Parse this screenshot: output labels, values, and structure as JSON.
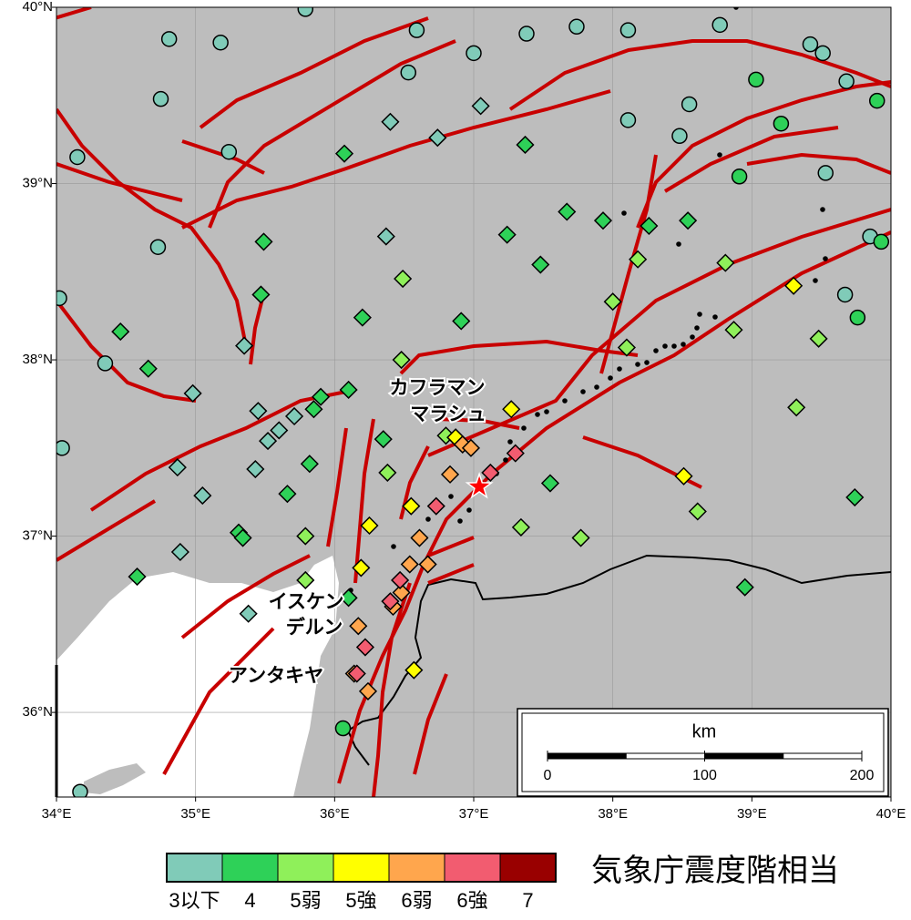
{
  "map": {
    "xlim": [
      34,
      40
    ],
    "ylim": [
      35.52,
      40
    ],
    "xticks": [
      {
        "value": 34,
        "label": "34°E"
      },
      {
        "value": 35,
        "label": "35°E"
      },
      {
        "value": 36,
        "label": "36°E"
      },
      {
        "value": 37,
        "label": "37°E"
      },
      {
        "value": 38,
        "label": "38°E"
      },
      {
        "value": 39,
        "label": "39°E"
      },
      {
        "value": 40,
        "label": "40°E"
      }
    ],
    "yticks": [
      {
        "value": 36,
        "label": "36°N"
      },
      {
        "value": 37,
        "label": "37°N"
      },
      {
        "value": 38,
        "label": "38°N"
      },
      {
        "value": 39,
        "label": "39°N"
      },
      {
        "value": 40,
        "label": "40°N"
      }
    ],
    "places": [
      [
        "カフラマン",
        "マラシュ"
      ],
      [
        "イスケン",
        "デルン"
      ],
      [
        "アンタキヤ"
      ]
    ],
    "epicenter": {
      "lon": 37.04,
      "lat": 37.28
    },
    "scalebar": {
      "unit": "km",
      "ticks": [
        0,
        100,
        200
      ]
    },
    "legend": {
      "title": "気象庁震度階相当",
      "classes": [
        {
          "label": "3以下",
          "color": "#80cbb8"
        },
        {
          "label": "4",
          "color": "#2ed158"
        },
        {
          "label": "5弱",
          "color": "#8ff05a"
        },
        {
          "label": "5強",
          "color": "#ffff00"
        },
        {
          "label": "6弱",
          "color": "#ffa64d"
        },
        {
          "label": "6強",
          "color": "#f25c70"
        },
        {
          "label": "7",
          "color": "#990000"
        }
      ]
    },
    "stations": [
      {
        "lon": 34.81,
        "lat": 39.82,
        "intensity": "3以下",
        "shape": "circle"
      },
      {
        "lon": 35.18,
        "lat": 39.8,
        "intensity": "3以下",
        "shape": "circle"
      },
      {
        "lon": 35.79,
        "lat": 39.99,
        "intensity": "3以下",
        "shape": "circle"
      },
      {
        "lon": 36.59,
        "lat": 39.87,
        "intensity": "3以下",
        "shape": "circle"
      },
      {
        "lon": 37.0,
        "lat": 39.74,
        "intensity": "3以下",
        "shape": "circle"
      },
      {
        "lon": 37.38,
        "lat": 39.85,
        "intensity": "3以下",
        "shape": "circle"
      },
      {
        "lon": 37.74,
        "lat": 39.89,
        "intensity": "3以下",
        "shape": "circle"
      },
      {
        "lon": 38.11,
        "lat": 39.87,
        "intensity": "3以下",
        "shape": "circle"
      },
      {
        "lon": 38.77,
        "lat": 39.9,
        "intensity": "3以下",
        "shape": "circle"
      },
      {
        "lon": 39.42,
        "lat": 39.79,
        "intensity": "3以下",
        "shape": "circle"
      },
      {
        "lon": 39.51,
        "lat": 39.74,
        "intensity": "3以下",
        "shape": "circle"
      },
      {
        "lon": 39.68,
        "lat": 39.58,
        "intensity": "3以下",
        "shape": "circle"
      },
      {
        "lon": 36.53,
        "lat": 39.63,
        "intensity": "3以下",
        "shape": "circle"
      },
      {
        "lon": 34.75,
        "lat": 39.48,
        "intensity": "3以下",
        "shape": "circle"
      },
      {
        "lon": 38.55,
        "lat": 39.45,
        "intensity": "3以下",
        "shape": "circle"
      },
      {
        "lon": 38.11,
        "lat": 39.36,
        "intensity": "3以下",
        "shape": "circle"
      },
      {
        "lon": 38.48,
        "lat": 39.27,
        "intensity": "3以下",
        "shape": "circle"
      },
      {
        "lon": 35.24,
        "lat": 39.18,
        "intensity": "3以下",
        "shape": "circle"
      },
      {
        "lon": 34.15,
        "lat": 39.15,
        "intensity": "3以下",
        "shape": "circle"
      },
      {
        "lon": 39.53,
        "lat": 39.06,
        "intensity": "3以下",
        "shape": "circle"
      },
      {
        "lon": 34.73,
        "lat": 38.64,
        "intensity": "3以下",
        "shape": "circle"
      },
      {
        "lon": 39.85,
        "lat": 38.7,
        "intensity": "3以下",
        "shape": "circle"
      },
      {
        "lon": 34.02,
        "lat": 38.35,
        "intensity": "3以下",
        "shape": "circle"
      },
      {
        "lon": 39.67,
        "lat": 38.37,
        "intensity": "3以下",
        "shape": "circle"
      },
      {
        "lon": 34.35,
        "lat": 37.98,
        "intensity": "3以下",
        "shape": "circle"
      },
      {
        "lon": 34.04,
        "lat": 37.5,
        "intensity": "3以下",
        "shape": "circle"
      },
      {
        "lon": 34.17,
        "lat": 35.55,
        "intensity": "3以下",
        "shape": "circle"
      },
      {
        "lon": 36.06,
        "lat": 35.91,
        "intensity": "4",
        "shape": "circle"
      },
      {
        "lon": 39.03,
        "lat": 39.59,
        "intensity": "4",
        "shape": "circle"
      },
      {
        "lon": 39.21,
        "lat": 39.34,
        "intensity": "4",
        "shape": "circle"
      },
      {
        "lon": 38.91,
        "lat": 39.04,
        "intensity": "4",
        "shape": "circle"
      },
      {
        "lon": 39.9,
        "lat": 39.47,
        "intensity": "4",
        "shape": "circle"
      },
      {
        "lon": 39.93,
        "lat": 38.67,
        "intensity": "4",
        "shape": "circle"
      },
      {
        "lon": 39.76,
        "lat": 38.24,
        "intensity": "4",
        "shape": "circle"
      },
      {
        "lon": 36.4,
        "lat": 39.35,
        "intensity": "3以下",
        "shape": "diamond"
      },
      {
        "lon": 36.74,
        "lat": 39.26,
        "intensity": "3以下",
        "shape": "diamond"
      },
      {
        "lon": 37.05,
        "lat": 39.44,
        "intensity": "3以下",
        "shape": "diamond"
      },
      {
        "lon": 36.37,
        "lat": 38.7,
        "intensity": "3以下",
        "shape": "diamond"
      },
      {
        "lon": 35.35,
        "lat": 38.08,
        "intensity": "3以下",
        "shape": "diamond"
      },
      {
        "lon": 34.98,
        "lat": 37.81,
        "intensity": "3以下",
        "shape": "diamond"
      },
      {
        "lon": 35.45,
        "lat": 37.71,
        "intensity": "3以下",
        "shape": "diamond"
      },
      {
        "lon": 35.6,
        "lat": 37.6,
        "intensity": "3以下",
        "shape": "diamond"
      },
      {
        "lon": 35.52,
        "lat": 37.54,
        "intensity": "3以下",
        "shape": "diamond"
      },
      {
        "lon": 35.71,
        "lat": 37.68,
        "intensity": "3以下",
        "shape": "diamond"
      },
      {
        "lon": 34.87,
        "lat": 37.39,
        "intensity": "3以下",
        "shape": "diamond"
      },
      {
        "lon": 35.05,
        "lat": 37.23,
        "intensity": "3以下",
        "shape": "diamond"
      },
      {
        "lon": 35.43,
        "lat": 37.38,
        "intensity": "3以下",
        "shape": "diamond"
      },
      {
        "lon": 34.89,
        "lat": 36.91,
        "intensity": "3以下",
        "shape": "diamond"
      },
      {
        "lon": 35.38,
        "lat": 36.56,
        "intensity": "3以下",
        "shape": "diamond"
      },
      {
        "lon": 36.07,
        "lat": 39.17,
        "intensity": "4",
        "shape": "diamond"
      },
      {
        "lon": 37.37,
        "lat": 39.22,
        "intensity": "4",
        "shape": "diamond"
      },
      {
        "lon": 35.49,
        "lat": 38.67,
        "intensity": "4",
        "shape": "diamond"
      },
      {
        "lon": 34.46,
        "lat": 38.16,
        "intensity": "4",
        "shape": "diamond"
      },
      {
        "lon": 34.66,
        "lat": 37.95,
        "intensity": "4",
        "shape": "diamond"
      },
      {
        "lon": 35.47,
        "lat": 38.37,
        "intensity": "4",
        "shape": "diamond"
      },
      {
        "lon": 36.2,
        "lat": 38.24,
        "intensity": "4",
        "shape": "diamond"
      },
      {
        "lon": 36.91,
        "lat": 38.22,
        "intensity": "4",
        "shape": "diamond"
      },
      {
        "lon": 35.85,
        "lat": 37.72,
        "intensity": "4",
        "shape": "diamond"
      },
      {
        "lon": 35.9,
        "lat": 37.79,
        "intensity": "4",
        "shape": "diamond"
      },
      {
        "lon": 36.1,
        "lat": 37.83,
        "intensity": "4",
        "shape": "diamond"
      },
      {
        "lon": 36.35,
        "lat": 37.55,
        "intensity": "4",
        "shape": "diamond"
      },
      {
        "lon": 35.82,
        "lat": 37.41,
        "intensity": "4",
        "shape": "diamond"
      },
      {
        "lon": 35.66,
        "lat": 37.24,
        "intensity": "4",
        "shape": "diamond"
      },
      {
        "lon": 35.31,
        "lat": 37.02,
        "intensity": "4",
        "shape": "diamond"
      },
      {
        "lon": 35.34,
        "lat": 36.99,
        "intensity": "4",
        "shape": "diamond"
      },
      {
        "lon": 34.58,
        "lat": 36.77,
        "intensity": "4",
        "shape": "diamond"
      },
      {
        "lon": 37.24,
        "lat": 38.71,
        "intensity": "4",
        "shape": "diamond"
      },
      {
        "lon": 37.48,
        "lat": 38.54,
        "intensity": "4",
        "shape": "diamond"
      },
      {
        "lon": 37.67,
        "lat": 38.84,
        "intensity": "4",
        "shape": "diamond"
      },
      {
        "lon": 37.93,
        "lat": 38.79,
        "intensity": "4",
        "shape": "diamond"
      },
      {
        "lon": 38.26,
        "lat": 38.76,
        "intensity": "4",
        "shape": "diamond"
      },
      {
        "lon": 38.54,
        "lat": 38.79,
        "intensity": "4",
        "shape": "diamond"
      },
      {
        "lon": 37.55,
        "lat": 37.3,
        "intensity": "4",
        "shape": "diamond"
      },
      {
        "lon": 39.74,
        "lat": 37.22,
        "intensity": "4",
        "shape": "diamond"
      },
      {
        "lon": 36.1,
        "lat": 36.65,
        "intensity": "4",
        "shape": "diamond"
      },
      {
        "lon": 38.95,
        "lat": 36.71,
        "intensity": "4",
        "shape": "diamond"
      },
      {
        "lon": 36.49,
        "lat": 38.46,
        "intensity": "5弱",
        "shape": "diamond"
      },
      {
        "lon": 38.18,
        "lat": 38.57,
        "intensity": "5弱",
        "shape": "diamond"
      },
      {
        "lon": 38.81,
        "lat": 38.55,
        "intensity": "5弱",
        "shape": "diamond"
      },
      {
        "lon": 38.0,
        "lat": 38.33,
        "intensity": "5弱",
        "shape": "diamond"
      },
      {
        "lon": 38.1,
        "lat": 38.07,
        "intensity": "5弱",
        "shape": "diamond"
      },
      {
        "lon": 38.87,
        "lat": 38.17,
        "intensity": "5弱",
        "shape": "diamond"
      },
      {
        "lon": 39.48,
        "lat": 38.12,
        "intensity": "5弱",
        "shape": "diamond"
      },
      {
        "lon": 39.32,
        "lat": 37.73,
        "intensity": "5弱",
        "shape": "diamond"
      },
      {
        "lon": 36.48,
        "lat": 38.0,
        "intensity": "5弱",
        "shape": "diamond"
      },
      {
        "lon": 37.34,
        "lat": 37.05,
        "intensity": "5弱",
        "shape": "diamond"
      },
      {
        "lon": 37.77,
        "lat": 36.99,
        "intensity": "5弱",
        "shape": "diamond"
      },
      {
        "lon": 38.61,
        "lat": 37.14,
        "intensity": "5弱",
        "shape": "diamond"
      },
      {
        "lon": 35.79,
        "lat": 37.0,
        "intensity": "5弱",
        "shape": "diamond"
      },
      {
        "lon": 35.79,
        "lat": 36.75,
        "intensity": "5弱",
        "shape": "diamond"
      },
      {
        "lon": 36.8,
        "lat": 37.57,
        "intensity": "5弱",
        "shape": "diamond"
      },
      {
        "lon": 36.38,
        "lat": 37.36,
        "intensity": "5弱",
        "shape": "diamond"
      },
      {
        "lon": 39.3,
        "lat": 38.42,
        "intensity": "5強",
        "shape": "diamond"
      },
      {
        "lon": 37.27,
        "lat": 37.72,
        "intensity": "5強",
        "shape": "diamond"
      },
      {
        "lon": 38.51,
        "lat": 37.34,
        "intensity": "5強",
        "shape": "diamond"
      },
      {
        "lon": 36.25,
        "lat": 37.06,
        "intensity": "5強",
        "shape": "diamond"
      },
      {
        "lon": 36.55,
        "lat": 37.17,
        "intensity": "5強",
        "shape": "diamond"
      },
      {
        "lon": 36.19,
        "lat": 36.82,
        "intensity": "5強",
        "shape": "diamond"
      },
      {
        "lon": 36.57,
        "lat": 36.24,
        "intensity": "5強",
        "shape": "diamond"
      },
      {
        "lon": 36.87,
        "lat": 37.56,
        "intensity": "5強",
        "shape": "diamond"
      },
      {
        "lon": 36.92,
        "lat": 37.52,
        "intensity": "6弱",
        "shape": "diamond"
      },
      {
        "lon": 36.98,
        "lat": 37.5,
        "intensity": "6弱",
        "shape": "diamond"
      },
      {
        "lon": 36.83,
        "lat": 37.35,
        "intensity": "6弱",
        "shape": "diamond"
      },
      {
        "lon": 36.61,
        "lat": 36.99,
        "intensity": "6弱",
        "shape": "diamond"
      },
      {
        "lon": 36.54,
        "lat": 36.84,
        "intensity": "6弱",
        "shape": "diamond"
      },
      {
        "lon": 36.67,
        "lat": 36.84,
        "intensity": "6弱",
        "shape": "diamond"
      },
      {
        "lon": 36.48,
        "lat": 36.68,
        "intensity": "6弱",
        "shape": "diamond"
      },
      {
        "lon": 36.42,
        "lat": 36.6,
        "intensity": "6弱",
        "shape": "diamond"
      },
      {
        "lon": 36.17,
        "lat": 36.49,
        "intensity": "6弱",
        "shape": "diamond"
      },
      {
        "lon": 36.24,
        "lat": 36.12,
        "intensity": "6弱",
        "shape": "diamond"
      },
      {
        "lon": 36.14,
        "lat": 36.22,
        "intensity": "6弱",
        "shape": "diamond"
      },
      {
        "lon": 37.3,
        "lat": 37.47,
        "intensity": "6強",
        "shape": "diamond"
      },
      {
        "lon": 37.12,
        "lat": 37.36,
        "intensity": "6強",
        "shape": "diamond"
      },
      {
        "lon": 36.73,
        "lat": 37.17,
        "intensity": "6強",
        "shape": "diamond"
      },
      {
        "lon": 36.47,
        "lat": 36.75,
        "intensity": "6強",
        "shape": "diamond"
      },
      {
        "lon": 36.4,
        "lat": 36.63,
        "intensity": "6強",
        "shape": "diamond"
      },
      {
        "lon": 36.22,
        "lat": 36.37,
        "intensity": "6強",
        "shape": "diamond"
      },
      {
        "lon": 36.16,
        "lat": 36.22,
        "intensity": "6強",
        "shape": "diamond"
      }
    ]
  }
}
